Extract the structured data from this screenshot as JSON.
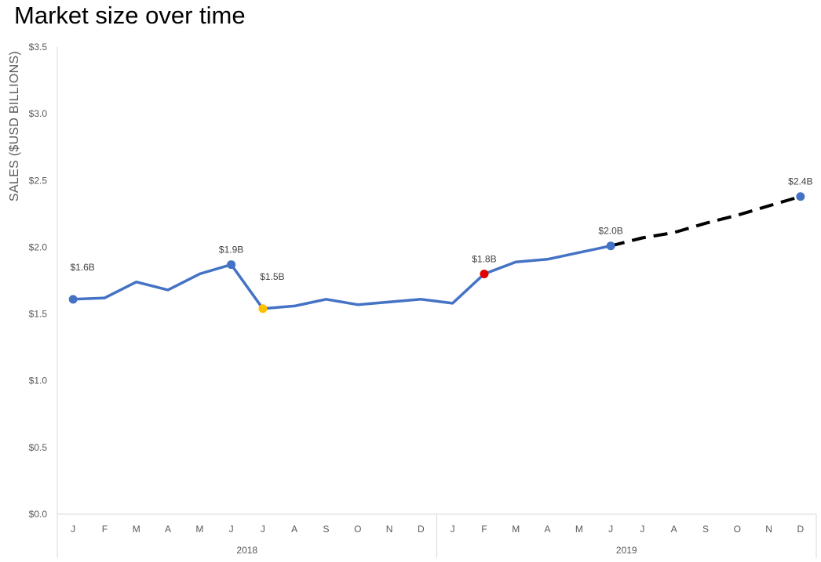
{
  "chart_data": {
    "type": "line",
    "title": "Market size over time",
    "ylabel": "SALES ($USD BILLIONS)",
    "xlabel": "",
    "ylim": [
      0,
      3.5
    ],
    "y_ticks": [
      "$0.0",
      "$0.5",
      "$1.0",
      "$1.5",
      "$2.0",
      "$2.5",
      "$3.0",
      "$3.5"
    ],
    "y_tick_values": [
      0,
      0.5,
      1.0,
      1.5,
      2.0,
      2.5,
      3.0,
      3.5
    ],
    "month_labels": [
      "J",
      "F",
      "M",
      "A",
      "M",
      "J",
      "J",
      "A",
      "S",
      "O",
      "N",
      "D",
      "J",
      "F",
      "M",
      "A",
      "M",
      "J",
      "J",
      "A",
      "S",
      "O",
      "N",
      "D"
    ],
    "year_groups": [
      {
        "label": "2018",
        "start": 0,
        "end": 11
      },
      {
        "label": "2019",
        "start": 12,
        "end": 23
      }
    ],
    "series": [
      {
        "style": "solid",
        "color": "#4472C4",
        "indices": [
          0,
          1,
          2,
          3,
          4,
          5,
          6,
          7,
          8,
          9,
          10,
          11,
          12,
          13,
          14,
          15,
          16,
          17
        ],
        "values": [
          1.61,
          1.62,
          1.74,
          1.68,
          1.8,
          1.87,
          1.54,
          1.56,
          1.61,
          1.57,
          1.59,
          1.61,
          1.58,
          1.8,
          1.89,
          1.91,
          1.96,
          2.01
        ]
      },
      {
        "style": "dashed",
        "color": "#000000",
        "indices": [
          17,
          18,
          19,
          20,
          21,
          22,
          23
        ],
        "values": [
          2.01,
          2.07,
          2.11,
          2.18,
          2.24,
          2.31,
          2.38
        ]
      }
    ],
    "highlights": [
      {
        "index": 0,
        "value": 1.61,
        "color": "#4472C4",
        "label": "$1.6B",
        "label_pos": "above-right"
      },
      {
        "index": 5,
        "value": 1.87,
        "color": "#4472C4",
        "label": "$1.9B",
        "label_pos": "above"
      },
      {
        "index": 6,
        "value": 1.54,
        "color": "#FFC000",
        "label": "$1.5B",
        "label_pos": "above-right"
      },
      {
        "index": 13,
        "value": 1.8,
        "color": "#E00000",
        "label": "$1.8B",
        "label_pos": "above"
      },
      {
        "index": 17,
        "value": 2.01,
        "color": "#4472C4",
        "label": "$2.0B",
        "label_pos": "above"
      },
      {
        "index": 23,
        "value": 2.38,
        "color": "#4472C4",
        "label": "$2.4B",
        "label_pos": "above"
      }
    ],
    "grid": false,
    "legend": "none"
  }
}
